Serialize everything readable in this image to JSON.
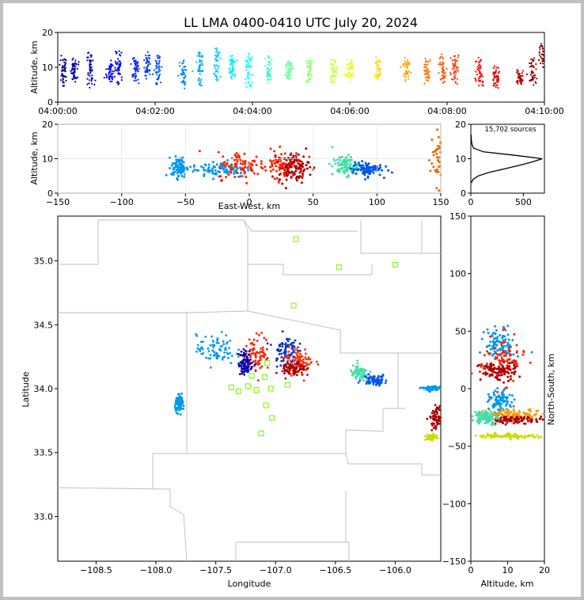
{
  "figure": {
    "title": "LL LMA 0400-0410 UTC July 20, 2024"
  },
  "colors": {
    "background": "#c0c0c0",
    "panel": "#ffffff",
    "boundary": "#bdbdbd",
    "station": "#7cfc00",
    "profile": "#000000"
  },
  "chart_data": [
    {
      "id": "time-height",
      "type": "scatter",
      "ylabel": "Altitude, km",
      "xlim": [
        "04:00:00",
        "04:10:00"
      ],
      "ylim": [
        0,
        20
      ],
      "xticks": [
        "04:00:00",
        "04:02:00",
        "04:04:00",
        "04:06:00",
        "04:08:00",
        "04:10:00"
      ],
      "yticks": [
        "0",
        "10",
        "20"
      ],
      "colormap": "jet by time",
      "clusters": [
        {
          "t": "04:00:07",
          "alt_min": 5,
          "alt_max": 13
        },
        {
          "t": "04:00:20",
          "alt_min": 6,
          "alt_max": 12
        },
        {
          "t": "04:00:40",
          "alt_min": 5,
          "alt_max": 14
        },
        {
          "t": "04:01:05",
          "alt_min": 6,
          "alt_max": 11
        },
        {
          "t": "04:01:15",
          "alt_min": 5,
          "alt_max": 15
        },
        {
          "t": "04:01:35",
          "alt_min": 6,
          "alt_max": 12
        },
        {
          "t": "04:01:50",
          "alt_min": 7,
          "alt_max": 14
        },
        {
          "t": "04:02:03",
          "alt_min": 6,
          "alt_max": 13
        },
        {
          "t": "04:02:35",
          "alt_min": 5,
          "alt_max": 12
        },
        {
          "t": "04:02:55",
          "alt_min": 5,
          "alt_max": 14
        },
        {
          "t": "04:03:15",
          "alt_min": 6,
          "alt_max": 15
        },
        {
          "t": "04:03:35",
          "alt_min": 7,
          "alt_max": 13
        },
        {
          "t": "04:03:55",
          "alt_min": 5,
          "alt_max": 14
        },
        {
          "t": "04:04:20",
          "alt_min": 6,
          "alt_max": 13
        },
        {
          "t": "04:04:45",
          "alt_min": 7,
          "alt_max": 12
        },
        {
          "t": "04:05:10",
          "alt_min": 6,
          "alt_max": 12
        },
        {
          "t": "04:05:40",
          "alt_min": 6,
          "alt_max": 12
        },
        {
          "t": "04:06:00",
          "alt_min": 7,
          "alt_max": 12
        },
        {
          "t": "04:06:35",
          "alt_min": 7,
          "alt_max": 12
        },
        {
          "t": "04:07:10",
          "alt_min": 7,
          "alt_max": 12
        },
        {
          "t": "04:07:35",
          "alt_min": 6,
          "alt_max": 12
        },
        {
          "t": "04:07:55",
          "alt_min": 6,
          "alt_max": 13
        },
        {
          "t": "04:08:10",
          "alt_min": 6,
          "alt_max": 13
        },
        {
          "t": "04:08:40",
          "alt_min": 5,
          "alt_max": 12
        },
        {
          "t": "04:09:00",
          "alt_min": 4,
          "alt_max": 10
        },
        {
          "t": "04:09:30",
          "alt_min": 5,
          "alt_max": 9
        },
        {
          "t": "04:09:45",
          "alt_min": 6,
          "alt_max": 12
        },
        {
          "t": "04:09:58",
          "alt_min": 10,
          "alt_max": 16
        }
      ]
    },
    {
      "id": "ew-height",
      "type": "scatter",
      "xlabel": "East-West, km",
      "ylabel": "Altitude, km",
      "xlim": [
        -150,
        150
      ],
      "ylim": [
        0,
        20
      ],
      "xticks": [
        "−150",
        "−100",
        "−50",
        "0",
        "50",
        "100",
        "150"
      ],
      "yticks": [
        "0",
        "10",
        "20"
      ],
      "clusters": [
        {
          "x": -55,
          "alt": 7.5,
          "sx": 3,
          "sy": 1.5,
          "color": "#0099ee"
        },
        {
          "x": -22,
          "alt": 7,
          "sx": 12,
          "sy": 1.2,
          "color": "#0099ee"
        },
        {
          "x": -5,
          "alt": 8,
          "sx": 10,
          "sy": 2,
          "color": "#ff2200"
        },
        {
          "x": 28,
          "alt": 8.5,
          "sx": 8,
          "sy": 2,
          "color": "#ff2200"
        },
        {
          "x": 35,
          "alt": 7.5,
          "sx": 6,
          "sy": 2,
          "color": "#aa0000"
        },
        {
          "x": 75,
          "alt": 8,
          "sx": 5,
          "sy": 1.5,
          "color": "#44ddaa"
        },
        {
          "x": 92,
          "alt": 7,
          "sx": 6,
          "sy": 1,
          "color": "#0055ee"
        },
        {
          "x": 150,
          "alt": 10,
          "sx": 4,
          "sy": 4,
          "color": "#ee6600"
        }
      ]
    },
    {
      "id": "alt-histogram",
      "type": "line",
      "xlim": [
        0,
        700
      ],
      "ylim": [
        0,
        20
      ],
      "xticks": [
        "0",
        "500"
      ],
      "yticks": [
        "0",
        "10",
        "20"
      ],
      "annotation": "15,702 sources",
      "profile": [
        {
          "alt": 3,
          "count": 5
        },
        {
          "alt": 4,
          "count": 20
        },
        {
          "alt": 5,
          "count": 70
        },
        {
          "alt": 6,
          "count": 170
        },
        {
          "alt": 7,
          "count": 310
        },
        {
          "alt": 8,
          "count": 450
        },
        {
          "alt": 9,
          "count": 580
        },
        {
          "alt": 10,
          "count": 680
        },
        {
          "alt": 11,
          "count": 420
        },
        {
          "alt": 12,
          "count": 120
        },
        {
          "alt": 13,
          "count": 30
        },
        {
          "alt": 14,
          "count": 12
        },
        {
          "alt": 15,
          "count": 6
        },
        {
          "alt": 17,
          "count": 2
        }
      ]
    },
    {
      "id": "plan-view",
      "type": "scatter",
      "xlabel": "Longitude",
      "ylabel": "Latitude",
      "xlim": [
        -108.82,
        -105.62
      ],
      "ylim": [
        32.65,
        35.35
      ],
      "xticks": [
        "−108.5",
        "−108.0",
        "−107.5",
        "−107.0",
        "−106.5",
        "−106.0"
      ],
      "yticks": [
        "33.0",
        "33.5",
        "34.0",
        "34.5",
        "35.0"
      ],
      "stations": [
        {
          "lon": -106.83,
          "lat": 35.17
        },
        {
          "lon": -106.47,
          "lat": 34.95
        },
        {
          "lon": -106.0,
          "lat": 34.97
        },
        {
          "lon": -106.85,
          "lat": 34.65
        },
        {
          "lon": -107.2,
          "lat": 34.1
        },
        {
          "lon": -107.07,
          "lat": 34.2
        },
        {
          "lon": -107.09,
          "lat": 34.09
        },
        {
          "lon": -107.37,
          "lat": 34.01
        },
        {
          "lon": -107.31,
          "lat": 33.98
        },
        {
          "lon": -107.23,
          "lat": 34.02
        },
        {
          "lon": -107.16,
          "lat": 33.99
        },
        {
          "lon": -107.04,
          "lat": 34.0
        },
        {
          "lon": -106.9,
          "lat": 34.03
        },
        {
          "lon": -107.08,
          "lat": 33.87
        },
        {
          "lon": -107.03,
          "lat": 33.77
        },
        {
          "lon": -107.12,
          "lat": 33.65
        }
      ],
      "clusters": [
        {
          "lon": -107.5,
          "lat": 34.3,
          "slon": 0.08,
          "slat": 0.06,
          "color": "#0099ee"
        },
        {
          "lon": -107.15,
          "lat": 34.28,
          "slon": 0.05,
          "slat": 0.07,
          "color": "#ff2200"
        },
        {
          "lon": -107.25,
          "lat": 34.2,
          "slon": 0.03,
          "slat": 0.05,
          "color": "#0000aa"
        },
        {
          "lon": -106.92,
          "lat": 34.3,
          "slon": 0.05,
          "slat": 0.06,
          "color": "#0033cc"
        },
        {
          "lon": -106.8,
          "lat": 34.22,
          "slon": 0.06,
          "slat": 0.05,
          "color": "#ff3300"
        },
        {
          "lon": -106.85,
          "lat": 34.15,
          "slon": 0.05,
          "slat": 0.03,
          "color": "#aa0000"
        },
        {
          "lon": -107.8,
          "lat": 33.88,
          "slon": 0.02,
          "slat": 0.03,
          "color": "#0099ee"
        },
        {
          "lon": -106.3,
          "lat": 34.12,
          "slon": 0.04,
          "slat": 0.03,
          "color": "#44ddaa"
        },
        {
          "lon": -106.17,
          "lat": 34.07,
          "slon": 0.05,
          "slat": 0.02,
          "color": "#0055ee"
        },
        {
          "lon": -105.65,
          "lat": 33.77,
          "slon": 0.03,
          "slat": 0.04,
          "color": "#aa0000"
        },
        {
          "lon": -105.7,
          "lat": 33.62,
          "slon": 0.02,
          "slat": 0.01,
          "color": "#ccdd00"
        },
        {
          "lon": -105.7,
          "lat": 34.0,
          "slon": 0.04,
          "slat": 0.01,
          "color": "#0099ee"
        }
      ]
    },
    {
      "id": "alt-ns",
      "type": "scatter",
      "xlabel": "Altitude, km",
      "ylabel": "North-South, km",
      "xlim": [
        0,
        20
      ],
      "ylim": [
        -150,
        150
      ],
      "xticks": [
        "0",
        "10",
        "20"
      ],
      "yticks": [
        "−150",
        "−100",
        "−50",
        "0",
        "50",
        "100",
        "150"
      ],
      "clusters": [
        {
          "alt": 8,
          "ns": 38,
          "salt": 2,
          "sns": 7,
          "color": "#0099ee"
        },
        {
          "alt": 8.5,
          "ns": 25,
          "salt": 3,
          "sns": 10,
          "color": "#ff2200"
        },
        {
          "alt": 7.5,
          "ns": 15,
          "salt": 2.5,
          "sns": 4,
          "color": "#aa0000"
        },
        {
          "alt": 8,
          "ns": -12,
          "salt": 1.5,
          "sns": 5,
          "color": "#0099ee"
        },
        {
          "alt": 12,
          "ns": -22,
          "salt": 4,
          "sns": 2,
          "color": "#ff9900"
        },
        {
          "alt": 12,
          "ns": -27,
          "salt": 4,
          "sns": 1.5,
          "color": "#aa0000"
        },
        {
          "alt": 10,
          "ns": -41,
          "salt": 4,
          "sns": 1,
          "color": "#ccdd00"
        },
        {
          "alt": 4,
          "ns": -25,
          "salt": 1.5,
          "sns": 3,
          "color": "#44ddaa"
        }
      ]
    }
  ]
}
